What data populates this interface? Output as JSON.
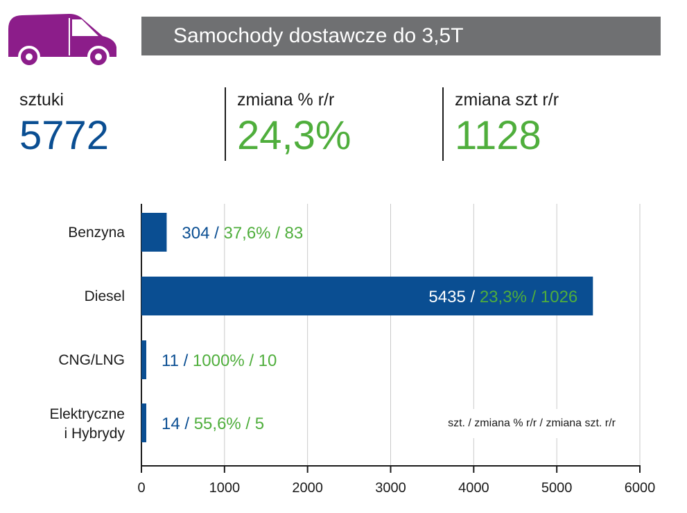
{
  "header": {
    "title": "Samochody dostawcze do 3,5T",
    "icon": "van-icon",
    "icon_color": "#8c1d8a"
  },
  "stats": [
    {
      "label": "sztuki",
      "value": "5772",
      "color": "#0a4e92"
    },
    {
      "label": "zmiana % r/r",
      "value": "24,3%",
      "color": "#4fae3c"
    },
    {
      "label": "zmiana szt r/r",
      "value": "1128",
      "color": "#4fae3c"
    }
  ],
  "legend_note": "szt. / zmiana % r/r / zmiana szt. r/r",
  "chart_data": {
    "type": "bar",
    "orientation": "horizontal",
    "categories": [
      "Benzyna",
      "Diesel",
      "CNG/LNG",
      "Elektryczne i Hybrydy"
    ],
    "category_lines": [
      [
        "Benzyna"
      ],
      [
        "Diesel"
      ],
      [
        "CNG/LNG"
      ],
      [
        "Elektryczne",
        "i Hybrydy"
      ]
    ],
    "values": [
      304,
      5435,
      11,
      14
    ],
    "pct_change": [
      "37,6%",
      "23,3%",
      "1000%",
      "55,6%"
    ],
    "abs_change": [
      "83",
      "1026",
      "10",
      "5"
    ],
    "xlim": [
      0,
      6000
    ],
    "xticks": [
      0,
      1000,
      2000,
      3000,
      4000,
      5000,
      6000
    ],
    "grid": true,
    "bar_color": "#0a4e92",
    "value_color": "#0a4e92",
    "change_color": "#4fae3c"
  }
}
